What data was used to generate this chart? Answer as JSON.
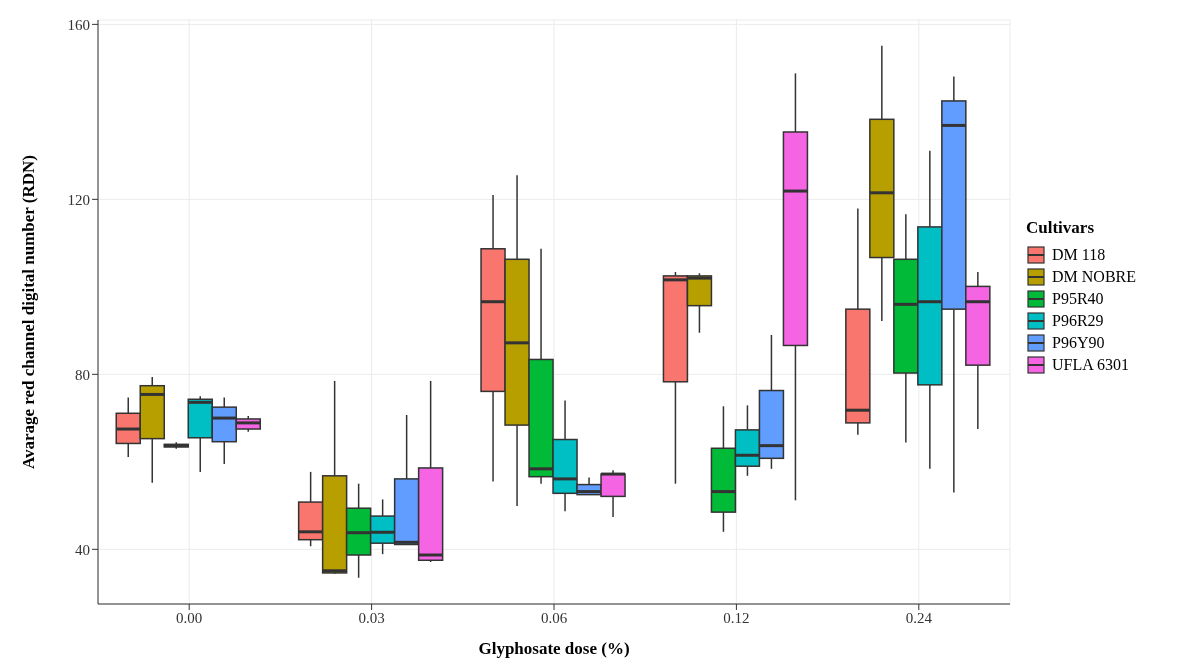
{
  "chart_data": {
    "type": "box",
    "xlabel": "Glyphosate dose (%)",
    "ylabel": "Avarage red channel digital number (RDN)",
    "legend_title": "Cultivars",
    "legend": "right",
    "grid": true,
    "categories": [
      "0.00",
      "0.03",
      "0.06",
      "0.12",
      "0.24"
    ],
    "ylim": [
      27.5,
      161
    ],
    "yticks": [
      40,
      80,
      120,
      160
    ],
    "series": [
      {
        "name": "DM 118",
        "color": "#f8766d",
        "boxes": [
          {
            "low": 61.1,
            "q1": 64.2,
            "median": 67.5,
            "q3": 71.1,
            "high": 74.7
          },
          {
            "low": 40.7,
            "q1": 42.2,
            "median": 44.0,
            "q3": 50.8,
            "high": 57.7
          },
          {
            "low": 55.5,
            "q1": 76.1,
            "median": 96.6,
            "q3": 108.7,
            "high": 121.0
          },
          {
            "low": 55.0,
            "q1": 78.3,
            "median": 101.6,
            "q3": 102.5,
            "high": 103.4
          },
          {
            "low": 66.2,
            "q1": 68.9,
            "median": 71.8,
            "q3": 94.9,
            "high": 117.9
          }
        ]
      },
      {
        "name": "DM NOBRE",
        "color": "#b79f00",
        "boxes": [
          {
            "low": 55.2,
            "q1": 65.3,
            "median": 75.4,
            "q3": 77.4,
            "high": 79.4
          },
          {
            "low": 34.4,
            "q1": 34.6,
            "median": 35.1,
            "q3": 56.8,
            "high": 78.5
          },
          {
            "low": 49.9,
            "q1": 68.4,
            "median": 87.2,
            "q3": 106.3,
            "high": 125.5
          },
          {
            "low": 89.5,
            "q1": 95.7,
            "median": 102.0,
            "q3": 102.5,
            "high": 103.1
          },
          {
            "low": 92.2,
            "q1": 106.7,
            "median": 121.5,
            "q3": 138.3,
            "high": 155.1
          }
        ]
      },
      {
        "name": "P95R40",
        "color": "#00ba38",
        "boxes": [
          {
            "low": 63.0,
            "q1": 63.4,
            "median": 63.7,
            "q3": 64.0,
            "high": 64.5
          },
          {
            "low": 33.5,
            "q1": 38.7,
            "median": 43.8,
            "q3": 49.4,
            "high": 55.0
          },
          {
            "low": 55.0,
            "q1": 56.6,
            "median": 58.4,
            "q3": 83.4,
            "high": 108.7
          },
          {
            "low": 44.0,
            "q1": 48.5,
            "median": 53.2,
            "q3": 63.1,
            "high": 72.7
          },
          {
            "low": 64.4,
            "q1": 80.3,
            "median": 96.0,
            "q3": 106.3,
            "high": 116.6
          }
        ]
      },
      {
        "name": "P96R29",
        "color": "#00bfc4",
        "boxes": [
          {
            "low": 57.7,
            "q1": 65.5,
            "median": 73.6,
            "q3": 74.3,
            "high": 75.0
          },
          {
            "low": 38.9,
            "q1": 41.4,
            "median": 43.9,
            "q3": 47.6,
            "high": 51.4
          },
          {
            "low": 48.7,
            "q1": 52.8,
            "median": 56.1,
            "q3": 65.1,
            "high": 74.0
          },
          {
            "low": 56.8,
            "q1": 59.0,
            "median": 61.5,
            "q3": 67.3,
            "high": 72.9
          },
          {
            "low": 58.4,
            "q1": 77.6,
            "median": 96.6,
            "q3": 113.7,
            "high": 131.1
          }
        ]
      },
      {
        "name": "P96Y90",
        "color": "#619cff",
        "boxes": [
          {
            "low": 59.5,
            "q1": 64.6,
            "median": 70.0,
            "q3": 72.5,
            "high": 74.7
          },
          {
            "low": 41.0,
            "q1": 41.1,
            "median": 41.6,
            "q3": 56.1,
            "high": 70.7
          },
          {
            "low": 52.4,
            "q1": 52.5,
            "median": 53.2,
            "q3": 54.8,
            "high": 56.4
          },
          {
            "low": 58.4,
            "q1": 60.8,
            "median": 63.7,
            "q3": 76.3,
            "high": 89.0
          },
          {
            "low": 53.0,
            "q1": 94.9,
            "median": 136.9,
            "q3": 142.5,
            "high": 148.1
          }
        ]
      },
      {
        "name": "UFLA 6301",
        "color": "#f564e3",
        "boxes": [
          {
            "low": 66.9,
            "q1": 67.5,
            "median": 68.9,
            "q3": 69.8,
            "high": 70.5
          },
          {
            "low": 37.1,
            "q1": 37.5,
            "median": 38.7,
            "q3": 58.6,
            "high": 78.5
          },
          {
            "low": 47.4,
            "q1": 52.1,
            "median": 57.2,
            "q3": 57.2,
            "high": 58.1
          },
          {
            "low": 51.2,
            "q1": 86.6,
            "median": 121.9,
            "q3": 135.4,
            "high": 148.8
          },
          {
            "low": 67.5,
            "q1": 82.1,
            "median": 96.6,
            "q3": 100.1,
            "high": 103.4
          }
        ]
      }
    ]
  }
}
